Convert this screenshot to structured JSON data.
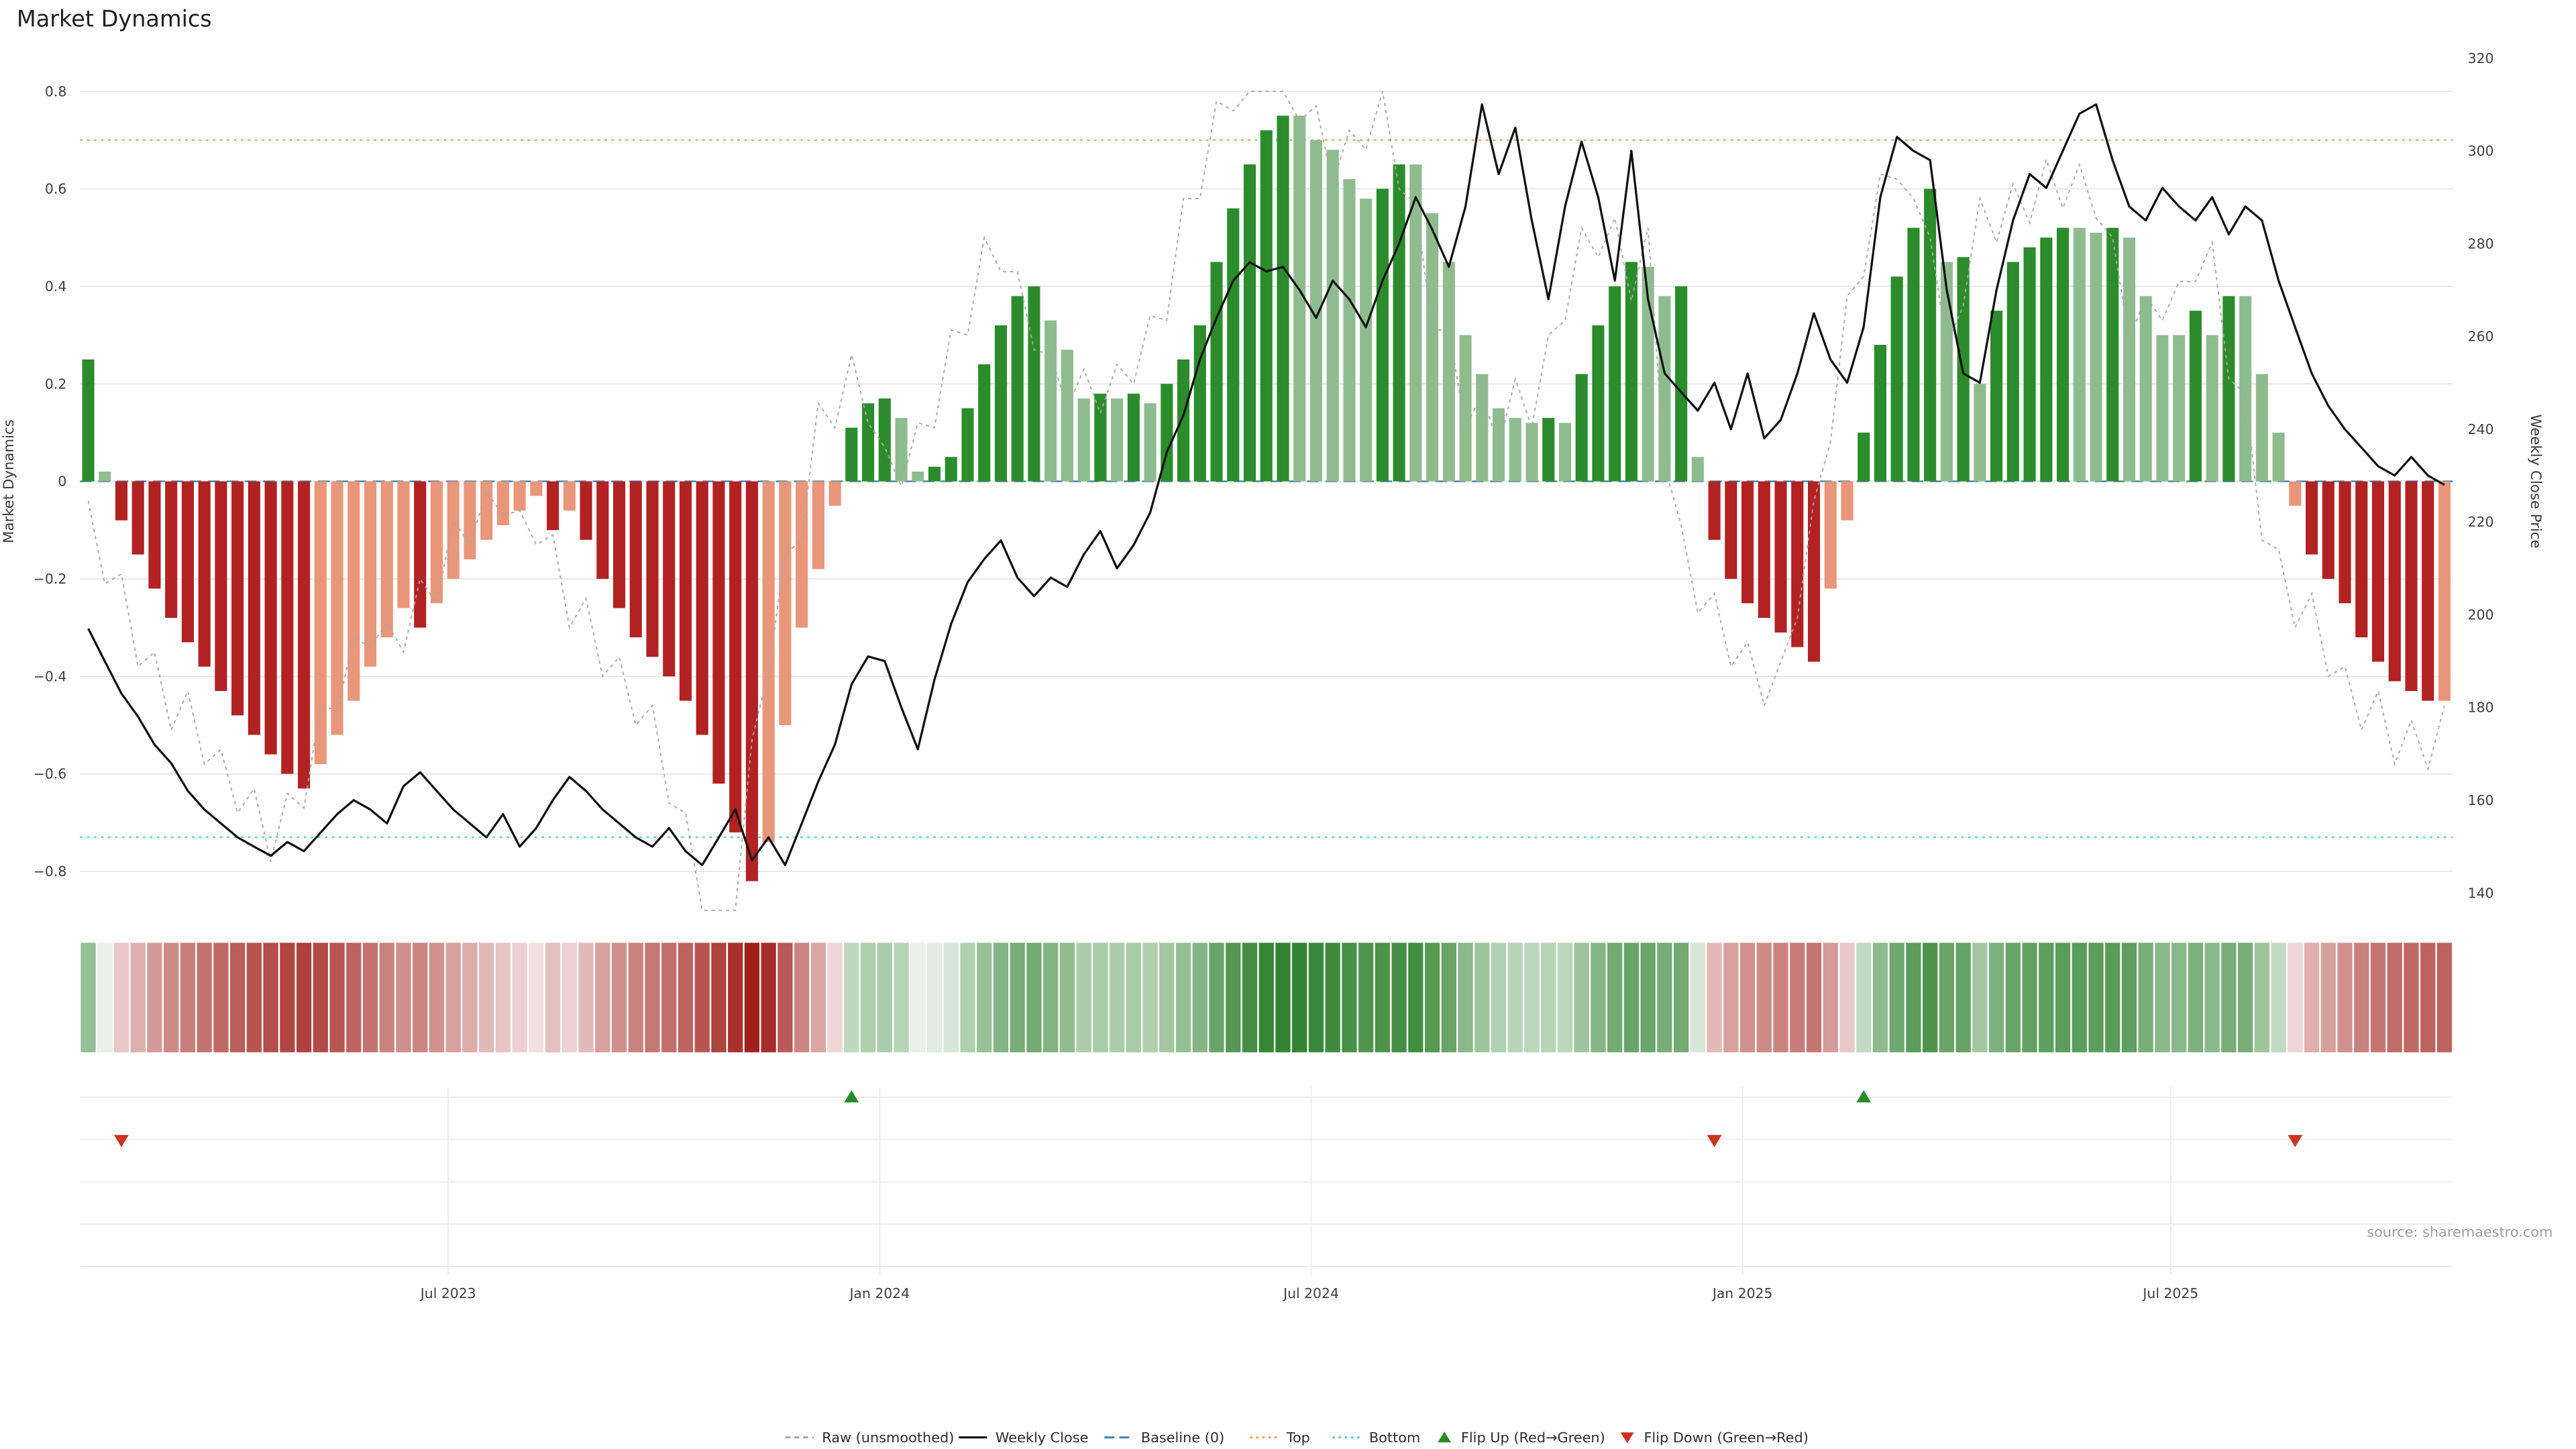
{
  "title": "Market Dynamics",
  "source": "source: sharemaestro.com",
  "colors": {
    "dark_green": "#2c8c2c",
    "light_green": "#8fbc8f",
    "dark_red": "#b22222",
    "light_red": "#e9967a",
    "close_line": "#101010",
    "raw_line": "#a9a9a9",
    "baseline": "#4a86ad",
    "top_line": "#e8a268",
    "bottom_line": "#62c9da",
    "flip_up": "#2a8a2a",
    "flip_down": "#cc3322",
    "grid": "#e8e8e8",
    "subgrid": "#ececec",
    "heat_green": "#227a22",
    "heat_red": "#9e1c16"
  },
  "axes": {
    "left_label": "Market Dynamics",
    "right_label": "Weekly Close Price",
    "left_ticks": [
      {
        "label": "0.8",
        "value": 0.8
      },
      {
        "label": "0.6",
        "value": 0.6
      },
      {
        "label": "0.4",
        "value": 0.4
      },
      {
        "label": "0.2",
        "value": 0.2
      },
      {
        "label": "0",
        "value": 0.0
      },
      {
        "label": "−0.2",
        "value": -0.2
      },
      {
        "label": "−0.4",
        "value": -0.4
      },
      {
        "label": "−0.6",
        "value": -0.6
      },
      {
        "label": "−0.8",
        "value": -0.8
      }
    ],
    "right_ticks": [
      {
        "label": "320",
        "value": 320
      },
      {
        "label": "300",
        "value": 300
      },
      {
        "label": "280",
        "value": 280
      },
      {
        "label": "260",
        "value": 260
      },
      {
        "label": "240",
        "value": 240
      },
      {
        "label": "220",
        "value": 220
      },
      {
        "label": "200",
        "value": 200
      },
      {
        "label": "180",
        "value": 180
      },
      {
        "label": "160",
        "value": 160
      },
      {
        "label": "140",
        "value": 140
      }
    ],
    "x_ticks": [
      {
        "label": "Jul 2023",
        "week": 21.7
      },
      {
        "label": "Jan 2024",
        "week": 47.7
      },
      {
        "label": "Jul 2024",
        "week": 73.7
      },
      {
        "label": "Jan 2025",
        "week": 99.7
      },
      {
        "label": "Jul 2025",
        "week": 125.5
      }
    ]
  },
  "chart_data": {
    "type": "bar",
    "title": "Market Dynamics",
    "n_points": 143,
    "x_unit": "week",
    "ylim_left": [
      -0.84,
      0.87
    ],
    "ylim_right": [
      140,
      320
    ],
    "reference_lines": {
      "baseline": 0,
      "top": 0.7,
      "bottom": -0.73
    },
    "flip_up_weeks": [
      46,
      107
    ],
    "flip_down_weeks": [
      2,
      98,
      133
    ],
    "series": [
      {
        "name": "Market Dynamics",
        "type": "bar",
        "axis": "left",
        "values": [
          0.25,
          0.02,
          -0.08,
          -0.15,
          -0.22,
          -0.28,
          -0.33,
          -0.38,
          -0.43,
          -0.48,
          -0.52,
          -0.56,
          -0.6,
          -0.63,
          -0.58,
          -0.52,
          -0.45,
          -0.38,
          -0.32,
          -0.26,
          -0.3,
          -0.25,
          -0.2,
          -0.16,
          -0.12,
          -0.09,
          -0.06,
          -0.03,
          -0.1,
          -0.06,
          -0.12,
          -0.2,
          -0.26,
          -0.32,
          -0.36,
          -0.4,
          -0.45,
          -0.52,
          -0.62,
          -0.72,
          -0.82,
          -0.74,
          -0.5,
          -0.3,
          -0.18,
          -0.05,
          0.11,
          0.16,
          0.17,
          0.13,
          0.02,
          0.03,
          0.05,
          0.15,
          0.24,
          0.32,
          0.38,
          0.4,
          0.33,
          0.27,
          0.17,
          0.18,
          0.17,
          0.18,
          0.16,
          0.2,
          0.25,
          0.32,
          0.45,
          0.56,
          0.65,
          0.72,
          0.75,
          0.75,
          0.7,
          0.68,
          0.62,
          0.58,
          0.6,
          0.65,
          0.65,
          0.55,
          0.45,
          0.3,
          0.22,
          0.15,
          0.13,
          0.12,
          0.13,
          0.12,
          0.22,
          0.32,
          0.4,
          0.45,
          0.44,
          0.38,
          0.4,
          0.05,
          -0.12,
          -0.2,
          -0.25,
          -0.28,
          -0.31,
          -0.34,
          -0.37,
          -0.22,
          -0.08,
          0.1,
          0.28,
          0.42,
          0.52,
          0.6,
          0.45,
          0.46,
          0.2,
          0.35,
          0.45,
          0.48,
          0.5,
          0.52,
          0.52,
          0.51,
          0.52,
          0.5,
          0.38,
          0.3,
          0.3,
          0.35,
          0.3,
          0.38,
          0.38,
          0.22,
          0.1,
          -0.05,
          -0.15,
          -0.2,
          -0.25,
          -0.32,
          -0.37,
          -0.41,
          -0.43,
          -0.45,
          -0.45
        ]
      },
      {
        "name": "Raw (unsmoothed)",
        "type": "line",
        "style": "dotted",
        "axis": "left",
        "values": [
          -0.04,
          -0.21,
          -0.19,
          -0.38,
          -0.35,
          -0.51,
          -0.43,
          -0.58,
          -0.55,
          -0.68,
          -0.63,
          -0.78,
          -0.64,
          -0.67,
          -0.46,
          -0.47,
          -0.32,
          -0.34,
          -0.29,
          -0.35,
          -0.2,
          -0.25,
          -0.08,
          -0.13,
          -0.02,
          -0.07,
          -0.06,
          -0.13,
          -0.11,
          -0.3,
          -0.24,
          -0.4,
          -0.36,
          -0.5,
          -0.46,
          -0.66,
          -0.68,
          -0.88,
          -0.88,
          -0.88,
          -0.53,
          -0.39,
          -0.15,
          -0.12,
          0.16,
          0.11,
          0.26,
          0.12,
          0.07,
          -0.01,
          0.12,
          0.11,
          0.31,
          0.3,
          0.5,
          0.43,
          0.43,
          0.27,
          0.26,
          0.15,
          0.23,
          0.14,
          0.24,
          0.2,
          0.34,
          0.33,
          0.58,
          0.58,
          0.78,
          0.76,
          0.8,
          0.8,
          0.8,
          0.74,
          0.77,
          0.61,
          0.72,
          0.68,
          0.8,
          0.6,
          0.57,
          0.31,
          0.31,
          0.11,
          0.18,
          0.07,
          0.21,
          0.11,
          0.3,
          0.33,
          0.52,
          0.46,
          0.54,
          0.37,
          0.52,
          0.03,
          -0.09,
          -0.27,
          -0.23,
          -0.38,
          -0.33,
          -0.46,
          -0.37,
          -0.28,
          -0.04,
          0.08,
          0.38,
          0.42,
          0.63,
          0.62,
          0.58,
          0.5,
          0.28,
          0.36,
          0.58,
          0.49,
          0.61,
          0.53,
          0.66,
          0.56,
          0.65,
          0.54,
          0.5,
          0.29,
          0.38,
          0.33,
          0.41,
          0.41,
          0.49,
          0.21,
          0.18,
          -0.12,
          -0.14,
          -0.3,
          -0.23,
          -0.4,
          -0.38,
          -0.51,
          -0.43,
          -0.58,
          -0.49,
          -0.59,
          -0.46
        ]
      },
      {
        "name": "Weekly Close",
        "type": "line",
        "axis": "right",
        "values": [
          197,
          190,
          183,
          178,
          172,
          168,
          162,
          158,
          155,
          152,
          150,
          148,
          151,
          149,
          153,
          157,
          160,
          158,
          155,
          163,
          166,
          162,
          158,
          155,
          152,
          157,
          150,
          154,
          160,
          165,
          162,
          158,
          155,
          152,
          150,
          154,
          149,
          146,
          152,
          158,
          147,
          152,
          146,
          155,
          164,
          172,
          185,
          191,
          190,
          180,
          171,
          186,
          198,
          207,
          212,
          216,
          208,
          204,
          208,
          206,
          213,
          218,
          210,
          215,
          222,
          235,
          243,
          255,
          264,
          272,
          276,
          274,
          275,
          270,
          264,
          272,
          268,
          262,
          272,
          280,
          290,
          283,
          275,
          288,
          310,
          295,
          305,
          285,
          268,
          288,
          302,
          290,
          272,
          300,
          268,
          252,
          248,
          244,
          250,
          240,
          252,
          238,
          242,
          252,
          265,
          255,
          250,
          262,
          290,
          303,
          300,
          298,
          270,
          252,
          250,
          270,
          285,
          295,
          292,
          300,
          308,
          310,
          298,
          288,
          285,
          292,
          288,
          285,
          290,
          282,
          288,
          285,
          272,
          262,
          252,
          245,
          240,
          236,
          232,
          230,
          234,
          230,
          228
        ]
      }
    ]
  },
  "legend": {
    "items": [
      {
        "label": "Raw (unsmoothed)",
        "swatch": "dashed-line",
        "color_key": "raw_line"
      },
      {
        "label": "Weekly Close",
        "swatch": "solid-line",
        "color_key": "close_line"
      },
      {
        "label": "Baseline (0)",
        "swatch": "longdash-line",
        "color_key": "baseline"
      },
      {
        "label": "Top",
        "swatch": "dotted-line",
        "color_key": "top_line"
      },
      {
        "label": "Bottom",
        "swatch": "dotted-line",
        "color_key": "bottom_line"
      },
      {
        "label": "Flip Up (Red→Green)",
        "swatch": "triangle-up",
        "color_key": "flip_up"
      },
      {
        "label": "Flip Down (Green→Red)",
        "swatch": "triangle-down",
        "color_key": "flip_down"
      }
    ]
  }
}
